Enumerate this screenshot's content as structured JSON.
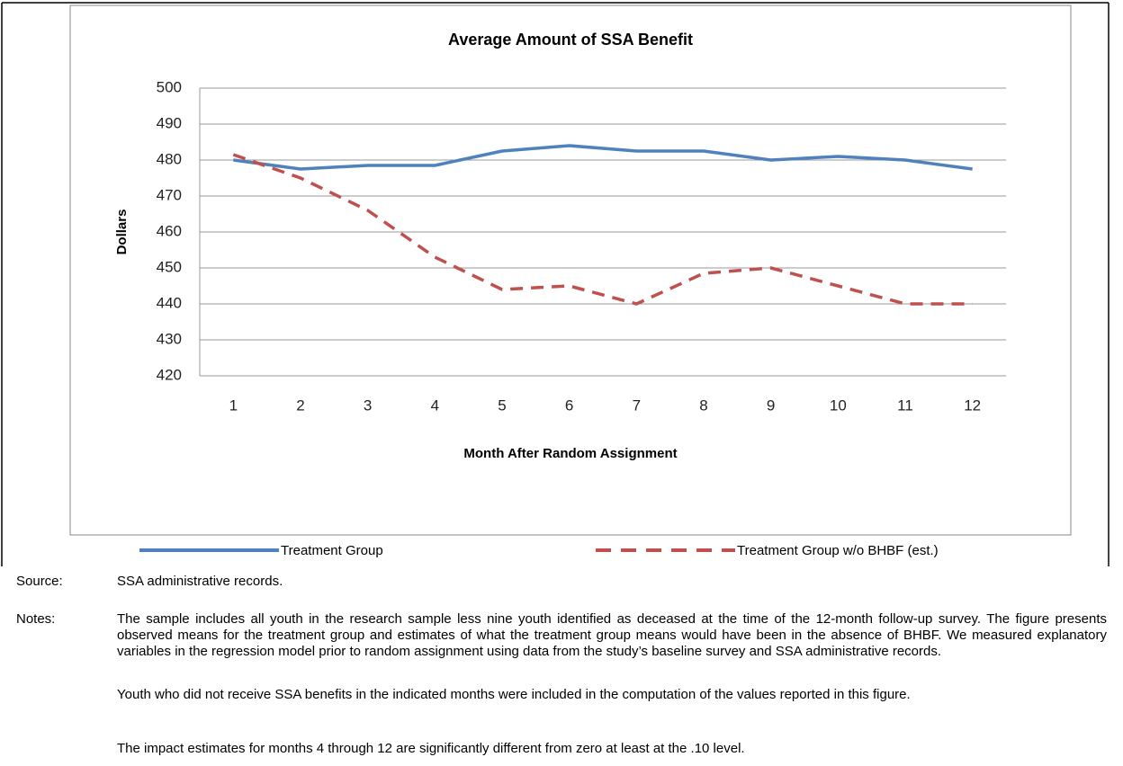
{
  "chart_data": {
    "type": "line",
    "title": "Average Amount of SSA Benefit",
    "x_label": "Month After Random Assignment",
    "y_label": "Dollars",
    "categories": [
      "1",
      "2",
      "3",
      "4",
      "5",
      "6",
      "7",
      "8",
      "9",
      "10",
      "11",
      "12"
    ],
    "series": [
      {
        "name": "Treatment Group",
        "color": "#4f81bd",
        "dashed": false,
        "values": [
          480,
          477.5,
          478.5,
          478.5,
          482.5,
          484,
          482.5,
          482.5,
          480,
          481,
          480,
          477.5
        ]
      },
      {
        "name": "Treatment Group w/o BHBF (est.)",
        "color": "#c0504d",
        "dashed": true,
        "values": [
          481.5,
          475,
          466,
          453,
          444,
          445,
          440,
          448.5,
          450,
          445,
          440,
          440
        ]
      }
    ],
    "ylim": [
      420,
      500
    ],
    "yticks": [
      420,
      430,
      440,
      450,
      460,
      470,
      480,
      490,
      500
    ],
    "grid": true
  },
  "source": {
    "label": "Source:",
    "text": "SSA administrative records."
  },
  "notes": {
    "label": "Notes:",
    "paragraphs": [
      "The sample includes all youth in the research sample less nine youth identified as deceased at the time of the 12-month follow-up survey. The figure presents observed means for the treatment group and estimates of what the treatment group means would have been in the absence of BHBF. We measured explanatory variables in the regression model prior to random assignment using data from the study’s baseline survey and SSA administrative records.",
      "Youth who did not receive SSA benefits in the indicated months were included in the computation of the values reported in this figure.",
      "The impact estimates for months 4 through 12 are significantly different from zero at least at the .10 level."
    ]
  }
}
